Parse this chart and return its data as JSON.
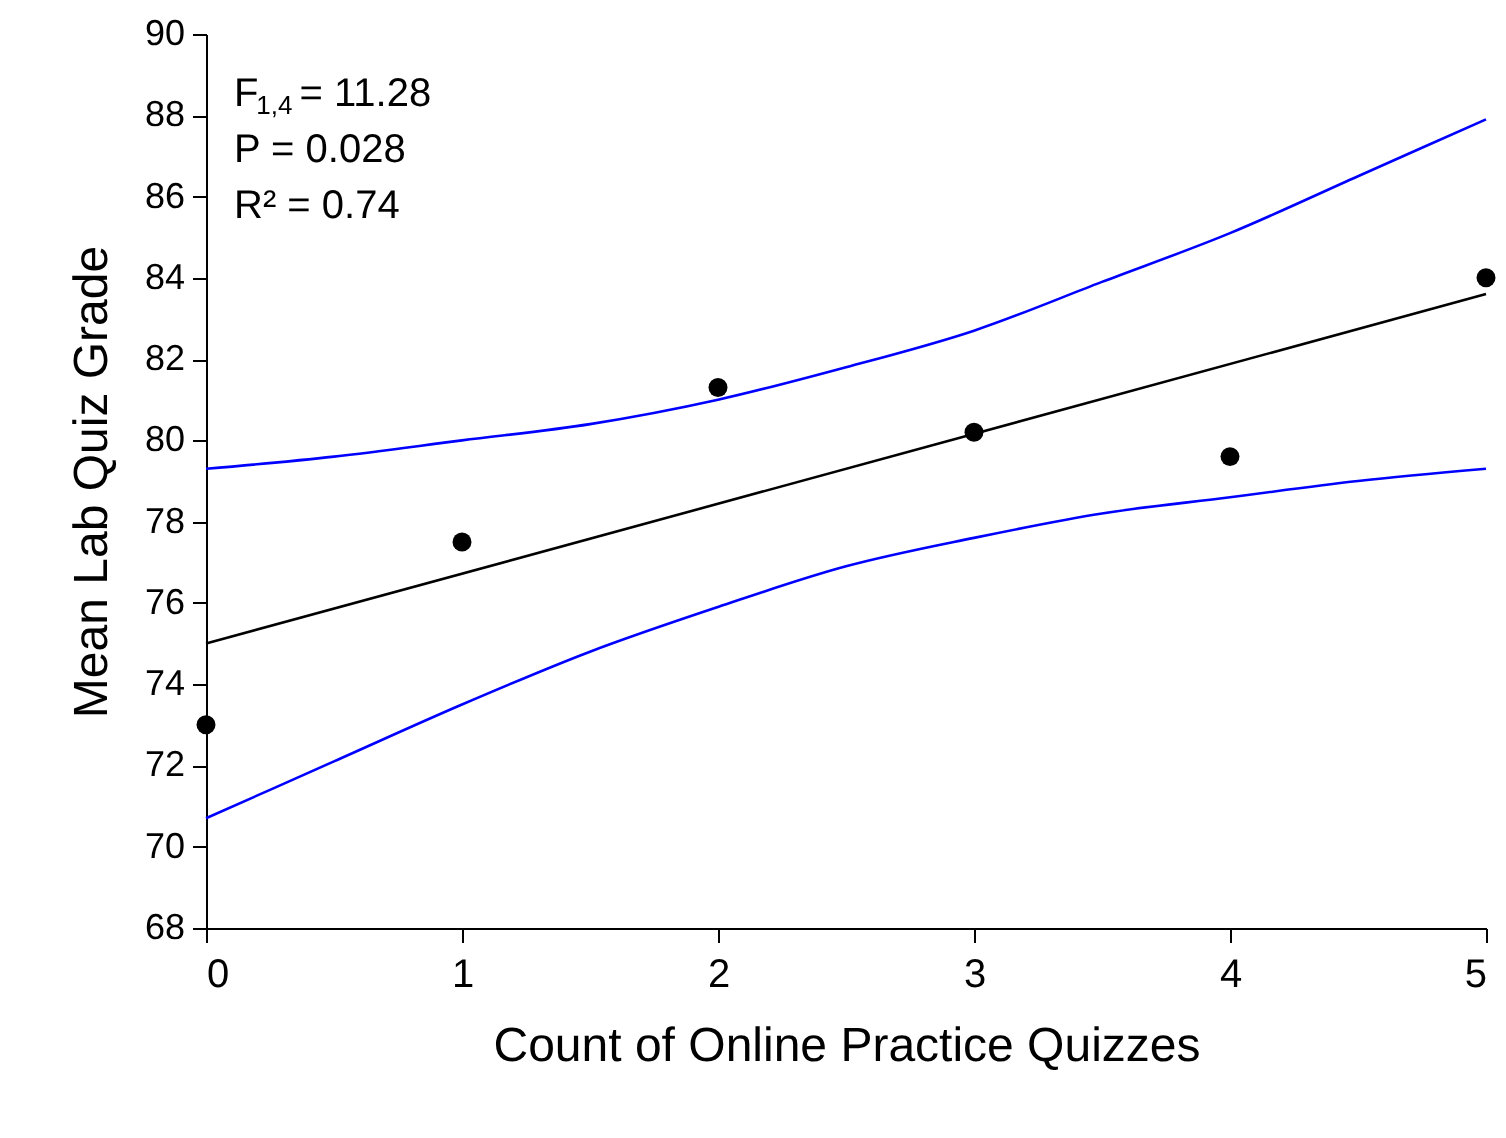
{
  "chart_data": {
    "type": "scatter",
    "xlabel": "Count of Online Practice Quizzes",
    "ylabel": "Mean Lab Quiz Grade",
    "series": [
      {
        "color": "#000000",
        "marker": "circle",
        "x": [
          0,
          1,
          2,
          3,
          4,
          5
        ],
        "values": [
          73.0,
          77.5,
          81.3,
          80.2,
          79.6,
          84.0
        ]
      },
      {
        "type": "line",
        "color": "#000000",
        "x": [
          0,
          5
        ],
        "values": [
          75.0,
          83.6
        ]
      },
      {
        "type": "line",
        "color": "#0000ff",
        "x": [
          0,
          0.5,
          1,
          1.5,
          2,
          2.5,
          3,
          3.5,
          4,
          4.5,
          5
        ],
        "values": [
          79.3,
          79.6,
          80.0,
          80.4,
          81.0,
          81.8,
          82.7,
          83.9,
          85.1,
          86.5,
          87.9
        ]
      },
      {
        "type": "line",
        "color": "#0000ff",
        "x": [
          0,
          0.5,
          1,
          1.5,
          2,
          2.5,
          3,
          3.5,
          4,
          4.5,
          5
        ],
        "values": [
          70.7,
          72.1,
          73.5,
          74.8,
          75.9,
          76.9,
          77.6,
          78.2,
          78.6,
          79.0,
          79.3
        ]
      }
    ],
    "xlim": [
      0,
      5
    ],
    "xticks": [
      0,
      1,
      2,
      3,
      4,
      5
    ],
    "ylim": [
      68,
      90
    ],
    "yticks": [
      68,
      70,
      72,
      74,
      76,
      78,
      80,
      82,
      84,
      86,
      88,
      90
    ],
    "annotations": [
      "F$_{1,4}$ = 11.28",
      "P = 0.028",
      "R² = 0.74"
    ],
    "grid": false,
    "line_style": "solid"
  }
}
